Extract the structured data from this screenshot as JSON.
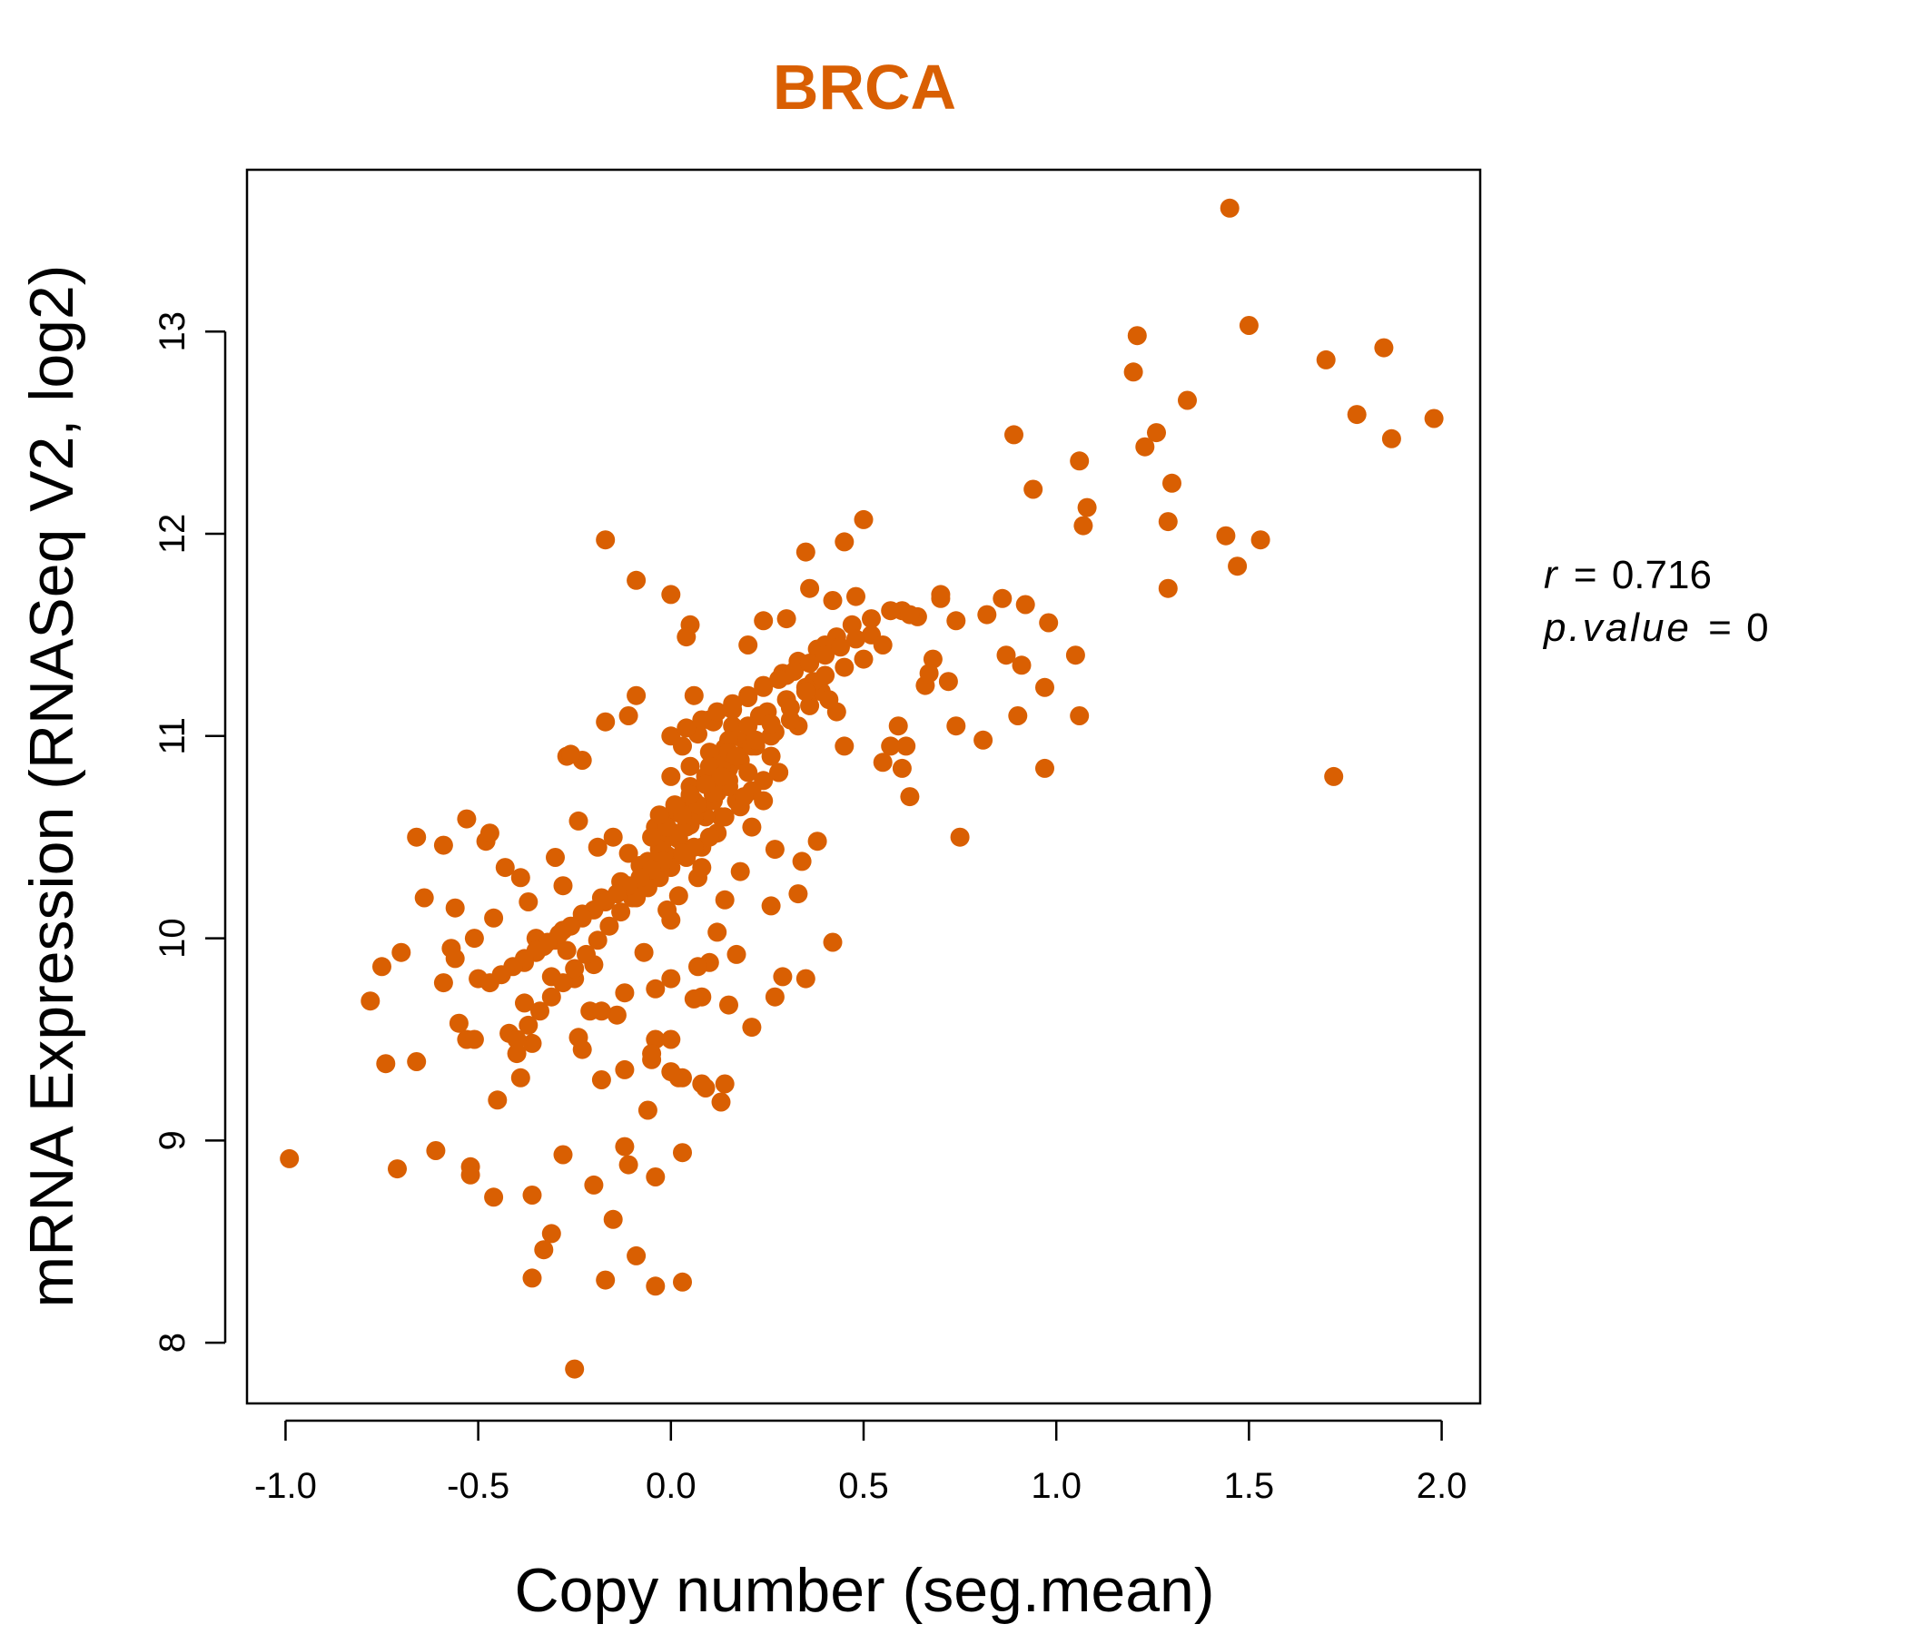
{
  "chart_data": {
    "type": "scatter",
    "title": "BRCA",
    "xlabel": "Copy number (seg.mean)",
    "ylabel": "mRNA Expression (RNASeq V2, log2)",
    "xlim": [
      -1.1,
      2.1
    ],
    "ylim": [
      7.7,
      13.8
    ],
    "x_ticks": [
      "-1.0",
      "-0.5",
      "0.0",
      "0.5",
      "1.0",
      "1.5",
      "2.0"
    ],
    "y_ticks": [
      "8",
      "9",
      "10",
      "11",
      "12",
      "13"
    ],
    "grid": false,
    "legend": "none",
    "annotation": {
      "r_label": "r",
      "r_value": "0.716",
      "p_label": "p.value",
      "p_value": "0"
    },
    "point_color": "#D95F02",
    "x": [
      1.45,
      1.21,
      1.5,
      1.2,
      1.34,
      1.3,
      1.7,
      1.78,
      1.85,
      1.87,
      1.98,
      0.89,
      1.26,
      1.23,
      1.06,
      0.94,
      1.08,
      1.07,
      1.29,
      1.29,
      1.44,
      1.53,
      1.47,
      1.72,
      0.5,
      0.45,
      0.35,
      0.36,
      0.0,
      -0.17,
      -0.09,
      0.86,
      0.92,
      0.98,
      0.82,
      0.87,
      0.91,
      1.05,
      0.97,
      0.9,
      1.06,
      0.81,
      0.97,
      0.74,
      0.62,
      0.55,
      0.6,
      0.66,
      0.68,
      0.7,
      0.74,
      0.72,
      0.64,
      0.6,
      0.52,
      0.48,
      0.42,
      0.4,
      0.7,
      0.67,
      0.75,
      0.61,
      0.59,
      0.57,
      0.45,
      0.38,
      0.05,
      0.04,
      0.24,
      0.3,
      0.2,
      -0.09,
      -0.11,
      -0.17,
      -0.27,
      -0.23,
      -0.26,
      -0.66,
      -0.59,
      -0.64,
      -0.53,
      -0.48,
      -0.47,
      -0.43,
      -0.56,
      -0.7,
      -0.75,
      -0.78,
      -0.57,
      -0.51,
      -0.56,
      -0.55,
      -0.59,
      -0.5,
      -0.46,
      -0.53,
      -0.51,
      -0.45,
      -0.39,
      -0.35,
      -0.24,
      -0.25,
      -0.21,
      -0.18,
      -0.12,
      -0.05,
      0.03,
      0.08,
      0.14,
      0.21,
      0.27,
      0.29,
      0.35,
      0.42,
      0.33,
      0.26,
      0.14,
      0.12,
      0.1,
      0.07,
      -0.0,
      -0.04,
      0.08,
      0.15,
      0.07,
      -0.07,
      -0.14,
      -0.04,
      -0.0,
      -0.23,
      -0.36,
      -0.4,
      -0.42,
      -0.38,
      -0.31,
      -0.3,
      -0.27,
      -0.2,
      -0.18,
      -0.12,
      -0.05,
      0.02,
      0.09,
      0.13,
      0.17,
      0.06,
      0.0,
      -0.06,
      -0.61,
      -0.66,
      -0.74,
      -0.71,
      -0.99,
      -0.52,
      -0.52,
      -0.46,
      -0.36,
      -0.36,
      -0.31,
      -0.33,
      -0.28,
      -0.2,
      -0.17,
      -0.15,
      -0.12,
      -0.11,
      -0.09,
      -0.04,
      -0.04,
      0.03,
      0.03,
      -0.25,
      -0.19,
      -0.28,
      -0.37,
      -0.39,
      -0.35,
      -0.3,
      -0.24,
      -0.15,
      -0.11,
      -0.07,
      -0.01,
      0.0,
      0.02,
      0.08,
      0.12,
      0.18,
      0.27,
      0.34,
      0.13,
      0.12,
      0.15,
      0.17,
      0.28,
      0.14,
      0.21,
      0.16,
      0.06,
      0.1,
      0.13,
      0.19,
      0.23,
      0.26,
      0.3,
      0.36,
      0.39,
      0.43,
      0.41,
      0.37,
      0.33,
      0.28,
      0.24,
      0.21,
      0.18,
      0.15,
      0.11,
      0.08,
      0.05,
      0.02,
      -0.01,
      -0.04,
      -0.07,
      -0.1,
      -0.13,
      -0.16,
      -0.19,
      -0.22,
      -0.25,
      -0.28,
      -0.31,
      -0.34,
      -0.37,
      -0.4,
      0.0,
      0.05,
      0.1,
      0.15,
      0.2,
      0.25,
      0.3,
      0.35,
      0.4,
      0.45,
      0.5,
      0.55,
      0.09,
      0.04,
      -0.02,
      -0.06,
      0.12,
      0.18,
      0.22,
      0.27,
      0.31,
      0.36,
      0.26,
      0.2,
      0.15,
      0.11,
      0.06,
      0.01,
      -0.03,
      -0.08,
      -0.13,
      -0.18,
      -0.23,
      -0.28,
      -0.33,
      -0.38,
      0.03,
      0.07,
      0.11,
      0.16,
      0.2,
      0.24,
      0.29,
      0.33,
      0.38,
      0.43,
      0.47,
      0.52,
      0.57,
      0.62,
      0.05,
      0.02,
      -0.01,
      -0.04,
      0.09,
      0.13,
      0.17,
      0.21,
      0.08,
      0.04,
      0.0,
      -0.03,
      -0.06,
      -0.09,
      0.14,
      0.19,
      0.24,
      0.1,
      0.06,
      0.03,
      -0.02,
      -0.05,
      -0.08,
      -0.11,
      -0.14,
      -0.17,
      -0.2,
      -0.23,
      -0.26,
      -0.29,
      -0.32,
      -0.35,
      -0.38,
      -0.41,
      -0.44,
      -0.47,
      0.0,
      0.04,
      0.08,
      0.12,
      0.16,
      0.2,
      0.24,
      0.28,
      0.32,
      0.36,
      0.4,
      0.44,
      0.48,
      0.05,
      0.1,
      0.15,
      0.06,
      0.02,
      -0.02,
      0.11,
      0.07,
      0.03,
      -0.01,
      -0.05,
      0.13,
      0.09,
      0.05,
      0.01,
      -0.03,
      0.17,
      0.22,
      0.26,
      0.31,
      0.35
    ],
    "y": [
      13.61,
      12.98,
      13.03,
      12.8,
      12.66,
      12.25,
      12.86,
      12.59,
      12.92,
      12.47,
      12.57,
      12.49,
      12.5,
      12.43,
      12.36,
      12.22,
      12.13,
      12.04,
      12.06,
      11.73,
      11.99,
      11.97,
      11.84,
      10.8,
      12.07,
      11.96,
      11.91,
      11.73,
      11.7,
      11.97,
      11.77,
      11.68,
      11.65,
      11.56,
      11.6,
      11.4,
      11.35,
      11.4,
      11.24,
      11.1,
      11.1,
      10.98,
      10.84,
      11.05,
      10.7,
      10.87,
      10.84,
      11.25,
      11.38,
      11.68,
      11.57,
      11.27,
      11.59,
      11.62,
      11.5,
      11.69,
      11.67,
      11.45,
      11.7,
      11.31,
      10.5,
      10.95,
      11.05,
      10.95,
      10.95,
      10.48,
      11.55,
      11.49,
      11.57,
      11.58,
      11.45,
      11.2,
      11.1,
      11.07,
      10.9,
      10.88,
      10.91,
      10.5,
      10.46,
      10.2,
      10.59,
      10.48,
      10.52,
      10.35,
      10.15,
      9.93,
      9.86,
      9.69,
      9.95,
      10.0,
      9.9,
      9.58,
      9.78,
      9.8,
      10.1,
      9.5,
      9.5,
      9.2,
      9.31,
      9.93,
      9.51,
      9.8,
      9.64,
      9.3,
      9.35,
      9.4,
      9.31,
      9.28,
      9.28,
      9.56,
      9.71,
      9.81,
      9.8,
      9.98,
      10.22,
      10.16,
      10.19,
      10.03,
      9.88,
      9.86,
      9.8,
      9.75,
      9.71,
      9.67,
      10.3,
      9.93,
      9.62,
      9.5,
      9.5,
      9.45,
      9.48,
      9.43,
      9.53,
      9.68,
      9.81,
      9.99,
      9.94,
      9.87,
      9.64,
      9.73,
      9.43,
      9.31,
      9.26,
      9.19,
      9.92,
      9.7,
      9.34,
      9.15,
      8.95,
      9.39,
      9.38,
      8.86,
      8.91,
      8.87,
      8.83,
      8.72,
      8.32,
      8.73,
      8.54,
      8.46,
      8.93,
      8.78,
      8.31,
      8.61,
      8.97,
      8.88,
      8.43,
      8.28,
      8.82,
      8.94,
      8.3,
      7.87,
      10.45,
      10.26,
      10.18,
      10.3,
      10.0,
      10.4,
      10.58,
      10.5,
      10.42,
      10.28,
      10.14,
      10.09,
      10.21,
      10.35,
      10.52,
      10.33,
      10.44,
      10.38,
      10.6,
      10.72,
      10.84,
      10.68,
      10.82,
      10.94,
      10.73,
      11.05,
      11.2,
      11.08,
      10.9,
      10.98,
      11.1,
      11.0,
      11.3,
      11.36,
      11.22,
      11.12,
      11.18,
      11.27,
      11.05,
      10.82,
      10.68,
      10.55,
      10.65,
      10.78,
      10.71,
      10.63,
      10.56,
      10.49,
      10.41,
      10.34,
      10.27,
      10.2,
      10.13,
      10.06,
      9.99,
      9.92,
      9.85,
      9.78,
      9.71,
      9.64,
      9.57,
      9.5,
      10.8,
      10.85,
      10.92,
      10.98,
      11.05,
      11.12,
      11.18,
      11.24,
      11.3,
      11.34,
      11.38,
      11.45,
      10.6,
      10.55,
      10.48,
      10.38,
      10.75,
      10.88,
      10.95,
      11.02,
      11.08,
      11.15,
      10.9,
      10.82,
      10.75,
      10.68,
      10.6,
      10.52,
      10.44,
      10.36,
      10.28,
      10.2,
      10.12,
      10.04,
      9.96,
      9.88,
      10.95,
      11.01,
      11.07,
      11.13,
      11.19,
      11.25,
      11.31,
      11.37,
      11.43,
      11.49,
      11.55,
      11.58,
      11.62,
      11.6,
      10.7,
      10.65,
      10.6,
      10.55,
      10.8,
      10.85,
      10.9,
      10.95,
      10.45,
      10.4,
      10.35,
      10.3,
      10.25,
      10.2,
      10.6,
      10.7,
      10.78,
      10.5,
      10.45,
      10.42,
      10.38,
      10.34,
      10.3,
      10.26,
      10.22,
      10.18,
      10.14,
      10.1,
      10.06,
      10.02,
      9.98,
      9.94,
      9.9,
      9.86,
      9.82,
      9.78,
      11.0,
      11.04,
      11.08,
      11.12,
      11.16,
      11.2,
      11.24,
      11.28,
      11.32,
      11.36,
      11.4,
      11.44,
      11.48,
      10.75,
      10.85,
      10.92,
      10.68,
      10.62,
      10.57,
      10.72,
      10.66,
      10.61,
      10.55,
      10.5,
      10.8,
      10.76,
      10.71,
      10.66,
      10.61,
      10.9,
      10.98,
      11.06,
      11.14,
      11.22
    ]
  }
}
